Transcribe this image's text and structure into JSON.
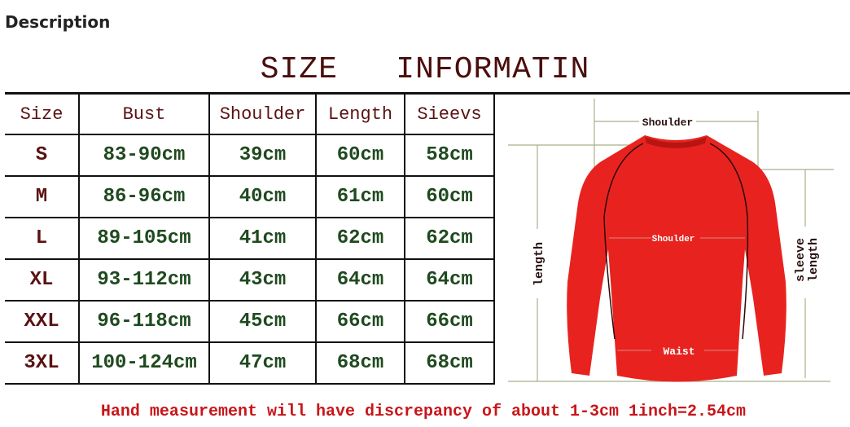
{
  "heading": "Description",
  "title": "SIZE   INFORMATIN",
  "table": {
    "headers": [
      "Size",
      "Bust",
      "Shoulder",
      "Length",
      "Sieevs"
    ],
    "rows": [
      [
        "S",
        "83-90cm",
        "39cm",
        "60cm",
        "58cm"
      ],
      [
        "M",
        "86-96cm",
        "40cm",
        "61cm",
        "60cm"
      ],
      [
        "L",
        "89-105cm",
        "41cm",
        "62cm",
        "62cm"
      ],
      [
        "XL",
        "93-112cm",
        "43cm",
        "64cm",
        "64cm"
      ],
      [
        "XXL",
        "96-118cm",
        "45cm",
        "66cm",
        "66cm"
      ],
      [
        "3XL",
        "100-124cm",
        "47cm",
        "68cm",
        "68cm"
      ]
    ]
  },
  "diagram": {
    "shoulder_top": "Shoulder",
    "shoulder_mid": "Shoulder",
    "waist": "Waist",
    "length": "length",
    "sleeve1": "sleeve",
    "sleeve2": "length",
    "shirt_color": "#e8231f"
  },
  "footer": "Hand measurement will have discrepancy of about 1-3cm 1inch=2.54cm"
}
